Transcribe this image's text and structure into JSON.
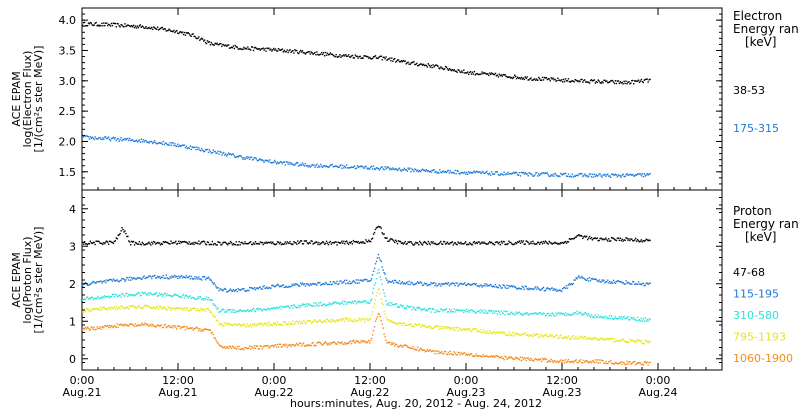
{
  "x_axis": {
    "title": "hours:minutes, Aug. 20, 2012 - Aug. 24, 2012",
    "range_hours": [
      0,
      80
    ],
    "ticks": [
      {
        "hour": 0,
        "time": "0:00",
        "date": "Aug.21"
      },
      {
        "hour": 12,
        "time": "12:00",
        "date": "Aug.21"
      },
      {
        "hour": 24,
        "time": "0:00",
        "date": "Aug.22"
      },
      {
        "hour": 36,
        "time": "12:00",
        "date": "Aug.22"
      },
      {
        "hour": 48,
        "time": "0:00",
        "date": "Aug.23"
      },
      {
        "hour": 60,
        "time": "12:00",
        "date": "Aug.23"
      },
      {
        "hour": 72,
        "time": "0:00",
        "date": "Aug.24"
      }
    ]
  },
  "chart_data": [
    {
      "type": "scatter",
      "panel": "electron",
      "ylabel_lines": [
        "ACE EPAM",
        "log(Electron Flux)",
        "[1/(cm²s ster MeV)]"
      ],
      "ylim": [
        1.2,
        4.2
      ],
      "yticks": [
        1.5,
        2.0,
        2.5,
        3.0,
        3.5,
        4.0
      ],
      "ytick_labels": [
        "1.5",
        "2.0",
        "2.5",
        "3.0",
        "3.5",
        "4.0"
      ],
      "legend": {
        "title_lines": [
          "Electron",
          "Energy ran",
          "[keV]"
        ]
      },
      "series": [
        {
          "name": "38-53",
          "color": "#000000",
          "x": [
            0,
            4,
            8,
            10,
            12,
            14,
            16,
            20,
            24,
            28,
            32,
            36,
            38,
            40,
            44,
            48,
            52,
            56,
            60,
            64,
            68,
            71
          ],
          "y": [
            3.95,
            3.93,
            3.9,
            3.86,
            3.82,
            3.75,
            3.62,
            3.55,
            3.52,
            3.48,
            3.43,
            3.4,
            3.38,
            3.32,
            3.25,
            3.15,
            3.1,
            3.05,
            3.02,
            3.0,
            2.98,
            3.02
          ]
        },
        {
          "name": "175-315",
          "color": "#1f7ad8",
          "x": [
            0,
            4,
            8,
            12,
            16,
            20,
            24,
            28,
            32,
            36,
            40,
            44,
            48,
            52,
            56,
            60,
            64,
            68,
            71
          ],
          "y": [
            2.08,
            2.05,
            2.02,
            1.95,
            1.85,
            1.75,
            1.67,
            1.62,
            1.6,
            1.58,
            1.55,
            1.52,
            1.5,
            1.48,
            1.47,
            1.46,
            1.45,
            1.45,
            1.46
          ]
        }
      ]
    },
    {
      "type": "scatter",
      "panel": "proton",
      "ylabel_lines": [
        "ACE EPAM",
        "log(Proton Flux)",
        "[1/(cm²s ster MeV)]"
      ],
      "ylim": [
        -0.3,
        4.5
      ],
      "yticks": [
        0,
        1,
        2,
        3,
        4
      ],
      "ytick_labels": [
        "0",
        "1",
        "2",
        "3",
        "4"
      ],
      "legend": {
        "title_lines": [
          "Proton",
          "Energy ran",
          "[keV]"
        ]
      },
      "series": [
        {
          "name": "47-68",
          "color": "#000000",
          "x": [
            0,
            4,
            5,
            6,
            8,
            10,
            12,
            16,
            20,
            24,
            28,
            32,
            36,
            37,
            38,
            40,
            44,
            48,
            52,
            56,
            60,
            62,
            64,
            68,
            71
          ],
          "y": [
            3.1,
            3.12,
            3.5,
            3.1,
            3.1,
            3.1,
            3.12,
            3.1,
            3.1,
            3.1,
            3.12,
            3.1,
            3.15,
            3.6,
            3.2,
            3.1,
            3.1,
            3.1,
            3.1,
            3.12,
            3.1,
            3.3,
            3.2,
            3.2,
            3.15
          ]
        },
        {
          "name": "115-195",
          "color": "#1f7ad8",
          "x": [
            0,
            4,
            8,
            12,
            16,
            17,
            20,
            24,
            28,
            32,
            36,
            37,
            38,
            40,
            44,
            48,
            52,
            56,
            60,
            61,
            62,
            64,
            68,
            71
          ],
          "y": [
            2.0,
            2.1,
            2.2,
            2.2,
            2.15,
            1.85,
            1.85,
            1.95,
            2.0,
            2.05,
            2.1,
            2.8,
            2.1,
            2.05,
            2.0,
            2.0,
            1.95,
            1.9,
            1.85,
            2.0,
            2.2,
            2.1,
            2.05,
            2.0
          ]
        },
        {
          "name": "310-580",
          "color": "#2fe0d8",
          "x": [
            0,
            4,
            8,
            12,
            16,
            17,
            20,
            24,
            28,
            32,
            36,
            37,
            38,
            40,
            44,
            48,
            52,
            56,
            60,
            62,
            64,
            68,
            71
          ],
          "y": [
            1.6,
            1.7,
            1.75,
            1.7,
            1.6,
            1.3,
            1.3,
            1.35,
            1.45,
            1.5,
            1.55,
            2.4,
            1.5,
            1.4,
            1.3,
            1.3,
            1.25,
            1.2,
            1.2,
            1.25,
            1.15,
            1.1,
            1.05
          ]
        },
        {
          "name": "795-1193",
          "color": "#e6e61a",
          "x": [
            0,
            4,
            8,
            12,
            16,
            17,
            20,
            24,
            28,
            32,
            36,
            37,
            38,
            40,
            44,
            48,
            52,
            56,
            60,
            64,
            68,
            71
          ],
          "y": [
            1.3,
            1.38,
            1.4,
            1.35,
            1.3,
            0.95,
            0.9,
            0.95,
            1.0,
            1.05,
            1.05,
            1.9,
            1.05,
            0.95,
            0.85,
            0.8,
            0.7,
            0.65,
            0.6,
            0.55,
            0.5,
            0.45
          ]
        },
        {
          "name": "1060-1900",
          "color": "#f08c1c",
          "x": [
            0,
            4,
            8,
            12,
            16,
            17,
            20,
            24,
            28,
            32,
            36,
            37,
            38,
            40,
            44,
            48,
            52,
            56,
            60,
            64,
            68,
            71
          ],
          "y": [
            0.8,
            0.9,
            0.92,
            0.85,
            0.78,
            0.35,
            0.3,
            0.35,
            0.4,
            0.45,
            0.48,
            1.3,
            0.45,
            0.35,
            0.2,
            0.15,
            0.05,
            0.0,
            -0.05,
            -0.05,
            -0.1,
            -0.1
          ]
        }
      ]
    }
  ]
}
